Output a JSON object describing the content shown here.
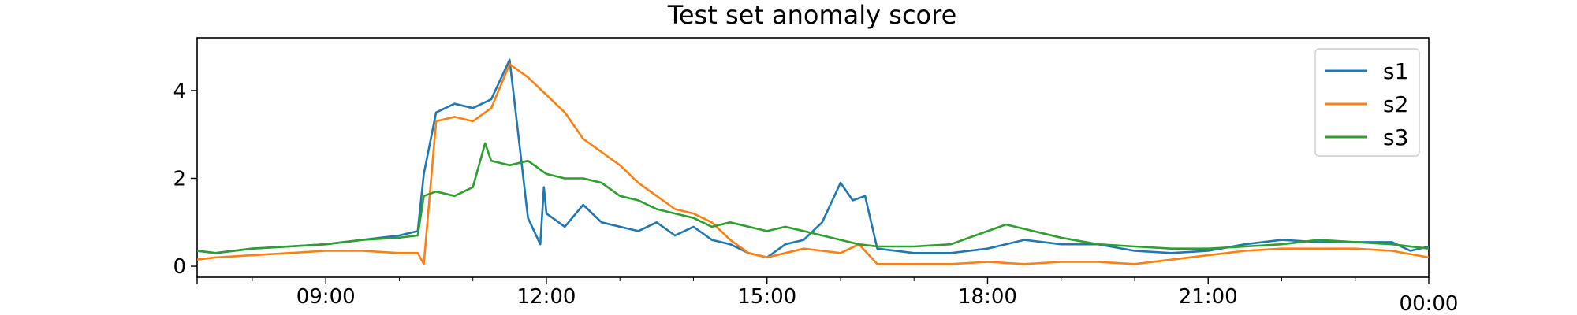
{
  "chart_data": {
    "type": "line",
    "title": "Test set anomaly score",
    "xlabel": "",
    "ylabel": "",
    "x_ticks": [
      "09:00",
      "12:00",
      "15:00",
      "18:00",
      "21:00",
      "00:00"
    ],
    "y_ticks": [
      "0",
      "2",
      "4"
    ],
    "y_tick_values": [
      0,
      2,
      4
    ],
    "xlim": [
      "07:15",
      "00:00"
    ],
    "ylim": [
      -0.25,
      5.2
    ],
    "grid": false,
    "legend_position": "top-right",
    "series": [
      {
        "name": "s1",
        "color": "#1f77b4",
        "x": [
          "07:15",
          "07:30",
          "08:00",
          "08:30",
          "09:00",
          "09:30",
          "10:00",
          "10:15",
          "10:20",
          "10:30",
          "10:45",
          "11:00",
          "11:15",
          "11:30",
          "11:45",
          "11:55",
          "11:58",
          "12:00",
          "12:15",
          "12:30",
          "12:45",
          "13:00",
          "13:15",
          "13:30",
          "13:45",
          "14:00",
          "14:15",
          "14:30",
          "14:45",
          "15:00",
          "15:15",
          "15:30",
          "15:45",
          "16:00",
          "16:10",
          "16:20",
          "16:30",
          "17:00",
          "17:30",
          "18:00",
          "18:30",
          "19:00",
          "19:30",
          "20:00",
          "20:30",
          "21:00",
          "21:30",
          "22:00",
          "22:30",
          "23:00",
          "23:30",
          "23:45",
          "00:00"
        ],
        "values": [
          0.35,
          0.3,
          0.4,
          0.45,
          0.5,
          0.6,
          0.7,
          0.8,
          2.1,
          3.5,
          3.7,
          3.6,
          3.8,
          4.7,
          1.1,
          0.5,
          1.8,
          1.2,
          0.9,
          1.4,
          1.0,
          0.9,
          0.8,
          1.0,
          0.7,
          0.9,
          0.6,
          0.5,
          0.3,
          0.2,
          0.5,
          0.6,
          1.0,
          1.9,
          1.5,
          1.6,
          0.4,
          0.3,
          0.3,
          0.4,
          0.6,
          0.5,
          0.5,
          0.35,
          0.3,
          0.35,
          0.5,
          0.6,
          0.55,
          0.55,
          0.55,
          0.35,
          0.45
        ]
      },
      {
        "name": "s2",
        "color": "#ff7f0e",
        "x": [
          "07:15",
          "07:30",
          "08:00",
          "08:30",
          "09:00",
          "09:30",
          "10:00",
          "10:15",
          "10:20",
          "10:30",
          "10:45",
          "11:00",
          "11:15",
          "11:30",
          "11:45",
          "12:00",
          "12:15",
          "12:30",
          "12:45",
          "13:00",
          "13:15",
          "13:30",
          "13:45",
          "14:00",
          "14:15",
          "14:30",
          "14:45",
          "15:00",
          "15:15",
          "15:30",
          "15:45",
          "16:00",
          "16:15",
          "16:30",
          "17:00",
          "17:30",
          "18:00",
          "18:30",
          "19:00",
          "19:30",
          "20:00",
          "20:30",
          "21:00",
          "21:30",
          "22:00",
          "22:30",
          "23:00",
          "23:30",
          "00:00"
        ],
        "values": [
          0.15,
          0.2,
          0.25,
          0.3,
          0.35,
          0.35,
          0.3,
          0.3,
          0.05,
          3.3,
          3.4,
          3.3,
          3.6,
          4.6,
          4.3,
          3.9,
          3.5,
          2.9,
          2.6,
          2.3,
          1.9,
          1.6,
          1.3,
          1.2,
          1.0,
          0.6,
          0.3,
          0.2,
          0.3,
          0.4,
          0.35,
          0.3,
          0.5,
          0.05,
          0.05,
          0.05,
          0.1,
          0.05,
          0.1,
          0.1,
          0.05,
          0.15,
          0.25,
          0.35,
          0.4,
          0.4,
          0.4,
          0.35,
          0.2
        ]
      },
      {
        "name": "s3",
        "color": "#2ca02c",
        "x": [
          "07:15",
          "07:30",
          "08:00",
          "08:30",
          "09:00",
          "09:30",
          "10:00",
          "10:15",
          "10:20",
          "10:30",
          "10:45",
          "11:00",
          "11:10",
          "11:15",
          "11:30",
          "11:45",
          "12:00",
          "12:15",
          "12:30",
          "12:45",
          "13:00",
          "13:15",
          "13:30",
          "13:45",
          "14:00",
          "14:15",
          "14:30",
          "14:45",
          "15:00",
          "15:15",
          "15:30",
          "15:45",
          "16:00",
          "16:15",
          "16:30",
          "17:00",
          "17:30",
          "18:00",
          "18:15",
          "18:30",
          "19:00",
          "19:30",
          "20:00",
          "20:30",
          "21:00",
          "21:30",
          "22:00",
          "22:30",
          "23:00",
          "23:30",
          "00:00"
        ],
        "values": [
          0.35,
          0.3,
          0.4,
          0.45,
          0.5,
          0.6,
          0.65,
          0.7,
          1.6,
          1.7,
          1.6,
          1.8,
          2.8,
          2.4,
          2.3,
          2.4,
          2.1,
          2.0,
          2.0,
          1.9,
          1.6,
          1.5,
          1.3,
          1.2,
          1.1,
          0.9,
          1.0,
          0.9,
          0.8,
          0.9,
          0.8,
          0.7,
          0.6,
          0.5,
          0.45,
          0.45,
          0.5,
          0.8,
          0.95,
          0.85,
          0.65,
          0.5,
          0.45,
          0.4,
          0.4,
          0.45,
          0.5,
          0.6,
          0.55,
          0.5,
          0.4
        ]
      }
    ]
  }
}
